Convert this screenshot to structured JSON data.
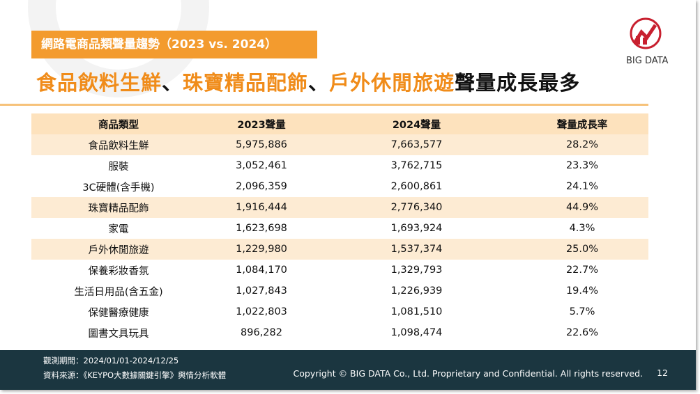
{
  "header": {
    "tag": "網路電商品類聲量趨勢（2023 vs. 2024）",
    "logo": "BIG DATA",
    "headline": [
      "食品飲料生鮮",
      "、",
      "珠寶精品配飾",
      "、",
      "戶外休閒旅遊",
      "聲量成長最多"
    ]
  },
  "table": {
    "columns": [
      "商品類型",
      "2023聲量",
      "2024聲量",
      "聲量成長率"
    ],
    "rows": [
      [
        "食品飲料生鮮",
        "5,975,886",
        "7,663,577",
        "28.2%"
      ],
      [
        "服裝",
        "3,052,461",
        "3,762,715",
        "23.3%"
      ],
      [
        "3C硬體(含手機)",
        "2,096,359",
        "2,600,861",
        "24.1%"
      ],
      [
        "珠寶精品配飾",
        "1,916,444",
        "2,776,340",
        "44.9%"
      ],
      [
        "家電",
        "1,623,698",
        "1,693,924",
        "4.3%"
      ],
      [
        "戶外休閒旅遊",
        "1,229,980",
        "1,537,374",
        "25.0%"
      ],
      [
        "保養彩妝香氛",
        "1,084,170",
        "1,329,793",
        "22.7%"
      ],
      [
        "生活日用品(含五金)",
        "1,027,843",
        "1,226,939",
        "19.4%"
      ],
      [
        "保健醫療健康",
        "1,022,803",
        "1,081,510",
        "5.7%"
      ],
      [
        "圖書文具玩具",
        "896,282",
        "1,098,474",
        "22.6%"
      ]
    ]
  },
  "footer": {
    "period": "觀測期間：2024/01/01-2024/12/25",
    "source": "資料來源：《KEYPO大數據關鍵引擎》輿情分析軟體",
    "copyright": "Copyright © BIG DATA Co., Ltd. Proprietary and Confidential. All rights reserved.",
    "page": "12"
  }
}
